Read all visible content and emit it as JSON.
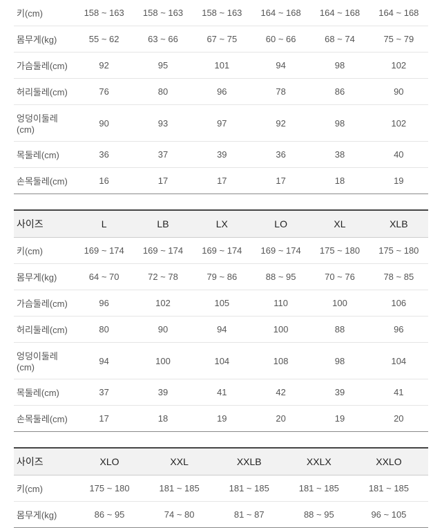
{
  "colHeaderSize": "사이즈",
  "rowLabels": {
    "height": "키(cm)",
    "weight": "몸무게(kg)",
    "chest": "가슴둘레(cm)",
    "waist": "허리둘레(cm)",
    "hip": "엉덩이둘레(cm)",
    "neck": "목둘레(cm)",
    "wrist": "손목둘레(cm)"
  },
  "table1": {
    "rows": {
      "height": [
        "158 ~ 163",
        "158 ~ 163",
        "158 ~ 163",
        "164 ~ 168",
        "164 ~ 168",
        "164 ~ 168"
      ],
      "weight": [
        "55 ~ 62",
        "63 ~ 66",
        "67 ~ 75",
        "60 ~ 66",
        "68 ~ 74",
        "75 ~ 79"
      ],
      "chest": [
        "92",
        "95",
        "101",
        "94",
        "98",
        "102"
      ],
      "waist": [
        "76",
        "80",
        "96",
        "78",
        "86",
        "90"
      ],
      "hip": [
        "90",
        "93",
        "97",
        "92",
        "98",
        "102"
      ],
      "neck": [
        "36",
        "37",
        "39",
        "36",
        "38",
        "40"
      ],
      "wrist": [
        "16",
        "17",
        "17",
        "17",
        "18",
        "19"
      ]
    }
  },
  "table2": {
    "sizes": [
      "L",
      "LB",
      "LX",
      "LO",
      "XL",
      "XLB"
    ],
    "rows": {
      "height": [
        "169 ~ 174",
        "169 ~ 174",
        "169 ~ 174",
        "169 ~ 174",
        "175 ~ 180",
        "175 ~ 180"
      ],
      "weight": [
        "64 ~ 70",
        "72 ~ 78",
        "79 ~ 86",
        "88 ~ 95",
        "70 ~ 76",
        "78 ~ 85"
      ],
      "chest": [
        "96",
        "102",
        "105",
        "110",
        "100",
        "106"
      ],
      "waist": [
        "80",
        "90",
        "94",
        "100",
        "88",
        "96"
      ],
      "hip": [
        "94",
        "100",
        "104",
        "108",
        "98",
        "104"
      ],
      "neck": [
        "37",
        "39",
        "41",
        "42",
        "39",
        "41"
      ],
      "wrist": [
        "17",
        "18",
        "19",
        "20",
        "19",
        "20"
      ]
    }
  },
  "table3": {
    "sizes": [
      "XLO",
      "XXL",
      "XXLB",
      "XXLX",
      "XXLO"
    ],
    "rows": {
      "height": [
        "175 ~ 180",
        "181 ~ 185",
        "181 ~ 185",
        "181 ~ 185",
        "181 ~ 185"
      ],
      "weight": [
        "86 ~ 95",
        "74 ~ 80",
        "81 ~ 87",
        "88 ~ 95",
        "96 ~ 105"
      ]
    }
  }
}
